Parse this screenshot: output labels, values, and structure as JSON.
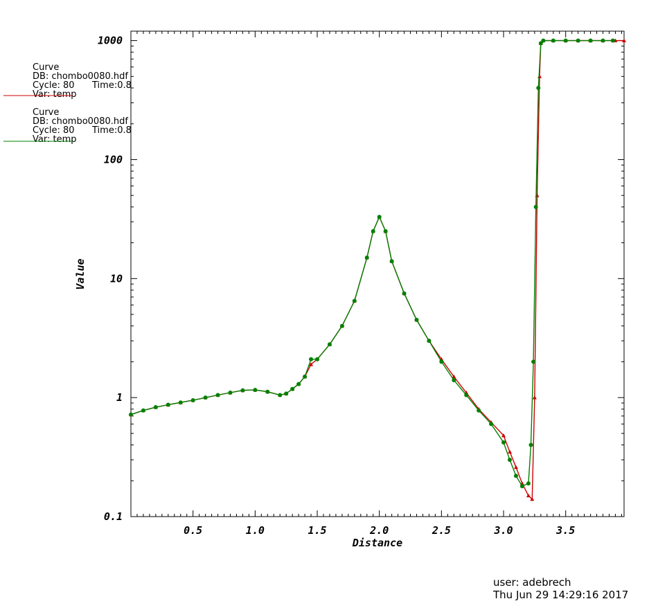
{
  "legend": [
    {
      "title": "Curve",
      "db": "DB: chombo0080.hdf",
      "cycle": "Cycle: 80",
      "time": "Time:0.8",
      "var": "Var: temp",
      "color": "#cc0000"
    },
    {
      "title": "Curve",
      "db": "DB: chombo0080.hdf",
      "cycle": "Cycle: 80",
      "time": "Time:0.8",
      "var": "Var: temp",
      "color": "#008000"
    }
  ],
  "footer": {
    "user": "user: adebrech",
    "date": "Thu Jun 29 14:29:16 2017"
  },
  "chart_data": {
    "type": "line",
    "xlabel": "Distance",
    "ylabel": "Value",
    "xlim": [
      0,
      3.97
    ],
    "ylim": [
      0.1,
      1200
    ],
    "yscale": "log",
    "grid": false,
    "legend_position": "top-left",
    "xticks": [
      0.5,
      1.0,
      1.5,
      2.0,
      2.5,
      3.0,
      3.5
    ],
    "xtick_labels": [
      "0.5",
      "1.0",
      "1.5",
      "2.0",
      "2.5",
      "3.0",
      "3.5"
    ],
    "yticks": [
      0.1,
      1,
      10,
      100,
      1000
    ],
    "ytick_labels": [
      "0.1",
      "1",
      "10",
      "100",
      "1000"
    ],
    "series": [
      {
        "marker": "triangle",
        "color": "#cc0000",
        "x": [
          0,
          0.1,
          0.2,
          0.3,
          0.4,
          0.5,
          0.6,
          0.7,
          0.8,
          0.9,
          1.0,
          1.1,
          1.2,
          1.25,
          1.3,
          1.35,
          1.4,
          1.45,
          1.5,
          1.6,
          1.7,
          1.8,
          1.9,
          1.95,
          2.0,
          2.05,
          2.1,
          2.2,
          2.3,
          2.4,
          2.5,
          2.6,
          2.7,
          2.8,
          2.9,
          3.0,
          3.05,
          3.1,
          3.15,
          3.2,
          3.23,
          3.25,
          3.27,
          3.29,
          3.3,
          3.32,
          3.4,
          3.5,
          3.6,
          3.7,
          3.8,
          3.9,
          3.97
        ],
        "y": [
          0.72,
          0.78,
          0.83,
          0.87,
          0.91,
          0.95,
          1.0,
          1.05,
          1.1,
          1.15,
          1.16,
          1.12,
          1.05,
          1.08,
          1.18,
          1.3,
          1.5,
          1.9,
          2.1,
          2.8,
          4.0,
          6.5,
          15,
          25,
          33,
          25,
          14,
          7.5,
          4.5,
          3.0,
          2.1,
          1.5,
          1.1,
          0.8,
          0.62,
          0.48,
          0.35,
          0.26,
          0.19,
          0.15,
          0.14,
          1.0,
          50,
          500,
          950,
          1000,
          1000,
          1000,
          1000,
          1000,
          1000,
          1000,
          1000
        ]
      },
      {
        "marker": "circle",
        "color": "#008000",
        "x": [
          0,
          0.1,
          0.2,
          0.3,
          0.4,
          0.5,
          0.6,
          0.7,
          0.8,
          0.9,
          1.0,
          1.1,
          1.2,
          1.25,
          1.3,
          1.35,
          1.4,
          1.45,
          1.5,
          1.6,
          1.7,
          1.8,
          1.9,
          1.95,
          2.0,
          2.05,
          2.1,
          2.2,
          2.3,
          2.4,
          2.5,
          2.6,
          2.7,
          2.8,
          2.9,
          3.0,
          3.05,
          3.1,
          3.15,
          3.2,
          3.22,
          3.24,
          3.26,
          3.28,
          3.3,
          3.32,
          3.4,
          3.5,
          3.6,
          3.7,
          3.8,
          3.88
        ],
        "y": [
          0.72,
          0.78,
          0.83,
          0.87,
          0.91,
          0.95,
          1.0,
          1.05,
          1.1,
          1.15,
          1.16,
          1.12,
          1.05,
          1.08,
          1.18,
          1.3,
          1.5,
          2.1,
          2.1,
          2.8,
          4.0,
          6.5,
          15,
          25,
          33,
          25,
          14,
          7.5,
          4.5,
          3.0,
          2.0,
          1.4,
          1.05,
          0.78,
          0.6,
          0.42,
          0.3,
          0.22,
          0.18,
          0.19,
          0.4,
          2.0,
          40,
          400,
          950,
          1000,
          1000,
          1000,
          1000,
          1000,
          1000,
          1000
        ]
      }
    ]
  }
}
